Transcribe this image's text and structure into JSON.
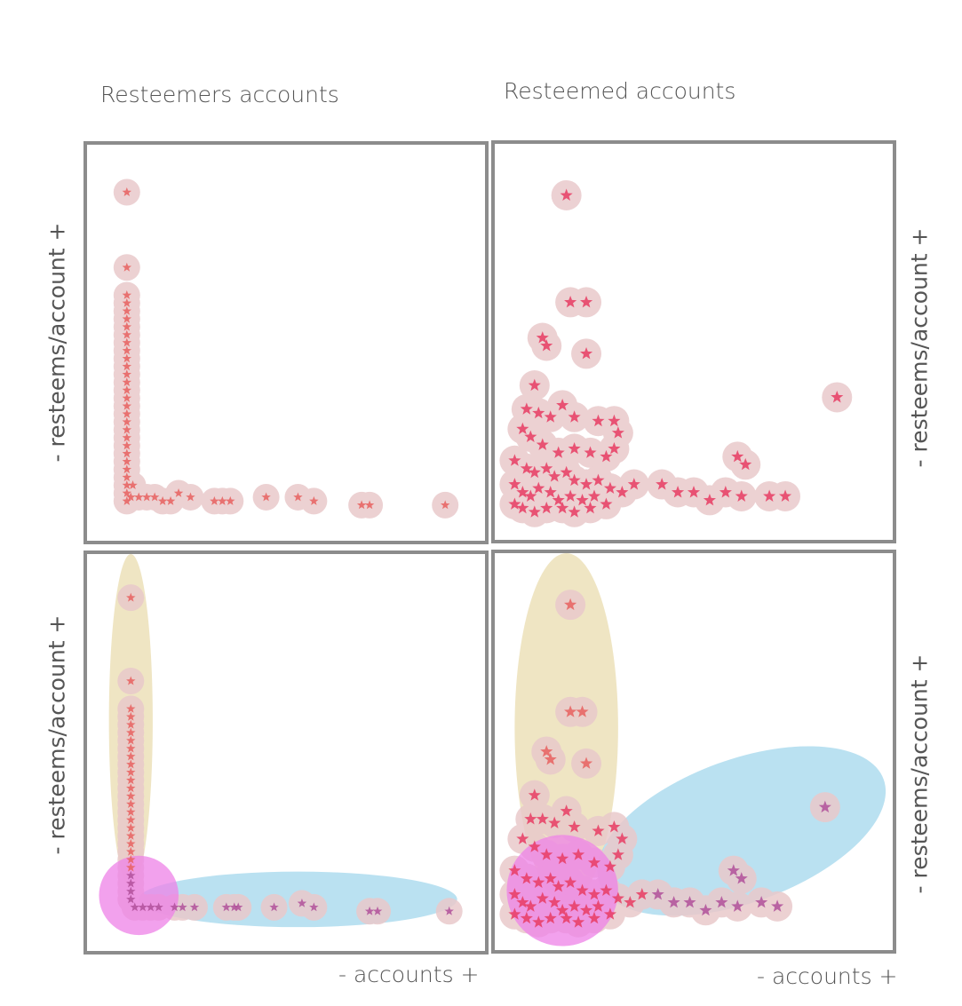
{
  "column_titles": [
    "Resteemers accounts",
    "Resteemed accounts"
  ],
  "axis_labels": {
    "y": "- resteems/account +",
    "x": "- accounts +"
  },
  "colors": {
    "halo": "#e9c9cb",
    "star_tl": "#e8605f",
    "star_red": "#e83c63",
    "star_purple": "#b0509a",
    "cluster_yellow": "#ebdfb4",
    "cluster_blue": "#a9d9ee",
    "cluster_magenta": "#ee82e7",
    "frame": "#8c8c8c"
  },
  "chart_data": [
    {
      "type": "scatter",
      "panel": "top-left",
      "title": "Resteemers accounts",
      "ylabel": "- resteems/account +",
      "xlim": [
        0,
        1
      ],
      "ylim": [
        0,
        1
      ],
      "points": [
        [
          0.1,
          0.88
        ],
        [
          0.1,
          0.69
        ],
        [
          0.1,
          0.62
        ],
        [
          0.1,
          0.6
        ],
        [
          0.1,
          0.58
        ],
        [
          0.1,
          0.56
        ],
        [
          0.1,
          0.54
        ],
        [
          0.1,
          0.52
        ],
        [
          0.1,
          0.5
        ],
        [
          0.1,
          0.48
        ],
        [
          0.1,
          0.46
        ],
        [
          0.1,
          0.44
        ],
        [
          0.1,
          0.42
        ],
        [
          0.1,
          0.4
        ],
        [
          0.1,
          0.38
        ],
        [
          0.1,
          0.36
        ],
        [
          0.1,
          0.34
        ],
        [
          0.1,
          0.32
        ],
        [
          0.1,
          0.3
        ],
        [
          0.1,
          0.28
        ],
        [
          0.1,
          0.26
        ],
        [
          0.1,
          0.24
        ],
        [
          0.1,
          0.22
        ],
        [
          0.1,
          0.2
        ],
        [
          0.1,
          0.18
        ],
        [
          0.1,
          0.16
        ],
        [
          0.1,
          0.14
        ],
        [
          0.1,
          0.12
        ],
        [
          0.1,
          0.1
        ],
        [
          0.115,
          0.14
        ],
        [
          0.11,
          0.11
        ],
        [
          0.13,
          0.11
        ],
        [
          0.15,
          0.11
        ],
        [
          0.17,
          0.11
        ],
        [
          0.19,
          0.1
        ],
        [
          0.21,
          0.1
        ],
        [
          0.23,
          0.12
        ],
        [
          0.26,
          0.11
        ],
        [
          0.32,
          0.1
        ],
        [
          0.34,
          0.1
        ],
        [
          0.36,
          0.1
        ],
        [
          0.45,
          0.11
        ],
        [
          0.53,
          0.11
        ],
        [
          0.57,
          0.1
        ],
        [
          0.69,
          0.09
        ],
        [
          0.71,
          0.09
        ],
        [
          0.9,
          0.09
        ]
      ]
    },
    {
      "type": "scatter",
      "panel": "top-right",
      "title": "Resteemed accounts",
      "ylabel": "- resteems/account +",
      "xlim": [
        0,
        1
      ],
      "ylim": [
        0,
        1
      ],
      "points": [
        [
          0.18,
          0.87
        ],
        [
          0.19,
          0.6
        ],
        [
          0.23,
          0.6
        ],
        [
          0.12,
          0.51
        ],
        [
          0.13,
          0.49
        ],
        [
          0.23,
          0.47
        ],
        [
          0.1,
          0.39
        ],
        [
          0.08,
          0.33
        ],
        [
          0.11,
          0.32
        ],
        [
          0.14,
          0.31
        ],
        [
          0.17,
          0.34
        ],
        [
          0.2,
          0.31
        ],
        [
          0.26,
          0.3
        ],
        [
          0.3,
          0.3
        ],
        [
          0.31,
          0.27
        ],
        [
          0.3,
          0.23
        ],
        [
          0.07,
          0.28
        ],
        [
          0.09,
          0.26
        ],
        [
          0.12,
          0.24
        ],
        [
          0.16,
          0.22
        ],
        [
          0.2,
          0.23
        ],
        [
          0.24,
          0.22
        ],
        [
          0.28,
          0.21
        ],
        [
          0.05,
          0.2
        ],
        [
          0.08,
          0.18
        ],
        [
          0.1,
          0.17
        ],
        [
          0.13,
          0.18
        ],
        [
          0.15,
          0.16
        ],
        [
          0.18,
          0.17
        ],
        [
          0.2,
          0.15
        ],
        [
          0.23,
          0.14
        ],
        [
          0.26,
          0.15
        ],
        [
          0.29,
          0.13
        ],
        [
          0.32,
          0.12
        ],
        [
          0.35,
          0.14
        ],
        [
          0.05,
          0.14
        ],
        [
          0.07,
          0.12
        ],
        [
          0.09,
          0.11
        ],
        [
          0.11,
          0.13
        ],
        [
          0.14,
          0.12
        ],
        [
          0.16,
          0.1
        ],
        [
          0.19,
          0.11
        ],
        [
          0.22,
          0.1
        ],
        [
          0.25,
          0.11
        ],
        [
          0.28,
          0.09
        ],
        [
          0.05,
          0.09
        ],
        [
          0.07,
          0.08
        ],
        [
          0.1,
          0.07
        ],
        [
          0.13,
          0.08
        ],
        [
          0.17,
          0.08
        ],
        [
          0.2,
          0.07
        ],
        [
          0.24,
          0.08
        ],
        [
          0.42,
          0.14
        ],
        [
          0.46,
          0.12
        ],
        [
          0.5,
          0.12
        ],
        [
          0.54,
          0.1
        ],
        [
          0.58,
          0.12
        ],
        [
          0.62,
          0.11
        ],
        [
          0.69,
          0.11
        ],
        [
          0.73,
          0.11
        ],
        [
          0.61,
          0.21
        ],
        [
          0.63,
          0.19
        ],
        [
          0.86,
          0.36
        ]
      ]
    },
    {
      "type": "scatter",
      "panel": "bottom-left",
      "ylabel": "- resteems/account +",
      "xlabel": "- accounts +",
      "xlim": [
        0,
        1
      ],
      "ylim": [
        0,
        1
      ],
      "clusters": [
        {
          "color": "cluster_yellow",
          "cx": 0.11,
          "cy": 0.58,
          "rx": 0.055,
          "ry": 0.42
        },
        {
          "color": "cluster_blue",
          "cx": 0.53,
          "cy": 0.13,
          "rx": 0.4,
          "ry": 0.07
        },
        {
          "color": "cluster_magenta",
          "cx": 0.13,
          "cy": 0.14,
          "rx": 0.1,
          "ry": 0.1
        }
      ],
      "points": [
        [
          0.11,
          0.89
        ],
        [
          0.11,
          0.68
        ],
        [
          0.11,
          0.61
        ],
        [
          0.11,
          0.59
        ],
        [
          0.11,
          0.57
        ],
        [
          0.11,
          0.55
        ],
        [
          0.11,
          0.53
        ],
        [
          0.11,
          0.51
        ],
        [
          0.11,
          0.49
        ],
        [
          0.11,
          0.47
        ],
        [
          0.11,
          0.45
        ],
        [
          0.11,
          0.43
        ],
        [
          0.11,
          0.41
        ],
        [
          0.11,
          0.39
        ],
        [
          0.11,
          0.37
        ],
        [
          0.11,
          0.35
        ],
        [
          0.11,
          0.33
        ],
        [
          0.11,
          0.31
        ],
        [
          0.11,
          0.29
        ],
        [
          0.11,
          0.27
        ],
        [
          0.11,
          0.25
        ],
        [
          0.11,
          0.23
        ],
        [
          0.11,
          0.21
        ],
        [
          0.11,
          0.19
        ],
        [
          0.11,
          0.17
        ],
        [
          0.11,
          0.15
        ],
        [
          0.11,
          0.13
        ],
        [
          0.12,
          0.11
        ],
        [
          0.14,
          0.11
        ],
        [
          0.16,
          0.11
        ],
        [
          0.18,
          0.11
        ],
        [
          0.22,
          0.11
        ],
        [
          0.24,
          0.11
        ],
        [
          0.27,
          0.11
        ],
        [
          0.35,
          0.11
        ],
        [
          0.37,
          0.11
        ],
        [
          0.38,
          0.11
        ],
        [
          0.47,
          0.11
        ],
        [
          0.54,
          0.12
        ],
        [
          0.57,
          0.11
        ],
        [
          0.71,
          0.1
        ],
        [
          0.73,
          0.1
        ],
        [
          0.91,
          0.1
        ]
      ]
    },
    {
      "type": "scatter",
      "panel": "bottom-right",
      "ylabel": "- resteems/account +",
      "xlabel": "- accounts +",
      "xlim": [
        0,
        1
      ],
      "ylim": [
        0,
        1
      ],
      "clusters": [
        {
          "color": "cluster_yellow",
          "cx": 0.18,
          "cy": 0.56,
          "rx": 0.13,
          "ry": 0.44
        },
        {
          "color": "cluster_blue",
          "cx": 0.62,
          "cy": 0.3,
          "rx": 0.38,
          "ry": 0.18,
          "rotate": -20
        },
        {
          "color": "cluster_magenta",
          "cx": 0.17,
          "cy": 0.15,
          "rx": 0.14,
          "ry": 0.14
        }
      ],
      "points": [
        [
          0.19,
          0.87
        ],
        [
          0.19,
          0.6
        ],
        [
          0.22,
          0.6
        ],
        [
          0.13,
          0.5
        ],
        [
          0.14,
          0.48
        ],
        [
          0.23,
          0.47
        ],
        [
          0.1,
          0.39
        ],
        [
          0.09,
          0.33
        ],
        [
          0.12,
          0.33
        ],
        [
          0.15,
          0.32
        ],
        [
          0.18,
          0.35
        ],
        [
          0.2,
          0.31
        ],
        [
          0.26,
          0.3
        ],
        [
          0.3,
          0.31
        ],
        [
          0.32,
          0.28
        ],
        [
          0.31,
          0.24
        ],
        [
          0.07,
          0.28
        ],
        [
          0.1,
          0.26
        ],
        [
          0.13,
          0.24
        ],
        [
          0.17,
          0.23
        ],
        [
          0.21,
          0.24
        ],
        [
          0.25,
          0.22
        ],
        [
          0.29,
          0.21
        ],
        [
          0.05,
          0.2
        ],
        [
          0.08,
          0.18
        ],
        [
          0.11,
          0.17
        ],
        [
          0.14,
          0.18
        ],
        [
          0.16,
          0.16
        ],
        [
          0.19,
          0.17
        ],
        [
          0.22,
          0.15
        ],
        [
          0.25,
          0.14
        ],
        [
          0.28,
          0.15
        ],
        [
          0.31,
          0.13
        ],
        [
          0.34,
          0.12
        ],
        [
          0.37,
          0.14
        ],
        [
          0.05,
          0.14
        ],
        [
          0.07,
          0.12
        ],
        [
          0.09,
          0.11
        ],
        [
          0.12,
          0.13
        ],
        [
          0.15,
          0.12
        ],
        [
          0.17,
          0.1
        ],
        [
          0.2,
          0.11
        ],
        [
          0.23,
          0.1
        ],
        [
          0.26,
          0.11
        ],
        [
          0.29,
          0.09
        ],
        [
          0.05,
          0.09
        ],
        [
          0.08,
          0.08
        ],
        [
          0.11,
          0.07
        ],
        [
          0.14,
          0.08
        ],
        [
          0.18,
          0.08
        ],
        [
          0.21,
          0.07
        ],
        [
          0.25,
          0.08
        ],
        [
          0.41,
          0.14
        ],
        [
          0.45,
          0.12
        ],
        [
          0.49,
          0.12
        ],
        [
          0.53,
          0.1
        ],
        [
          0.57,
          0.12
        ],
        [
          0.61,
          0.11
        ],
        [
          0.67,
          0.12
        ],
        [
          0.71,
          0.11
        ],
        [
          0.6,
          0.2
        ],
        [
          0.62,
          0.18
        ],
        [
          0.83,
          0.36
        ]
      ]
    }
  ]
}
